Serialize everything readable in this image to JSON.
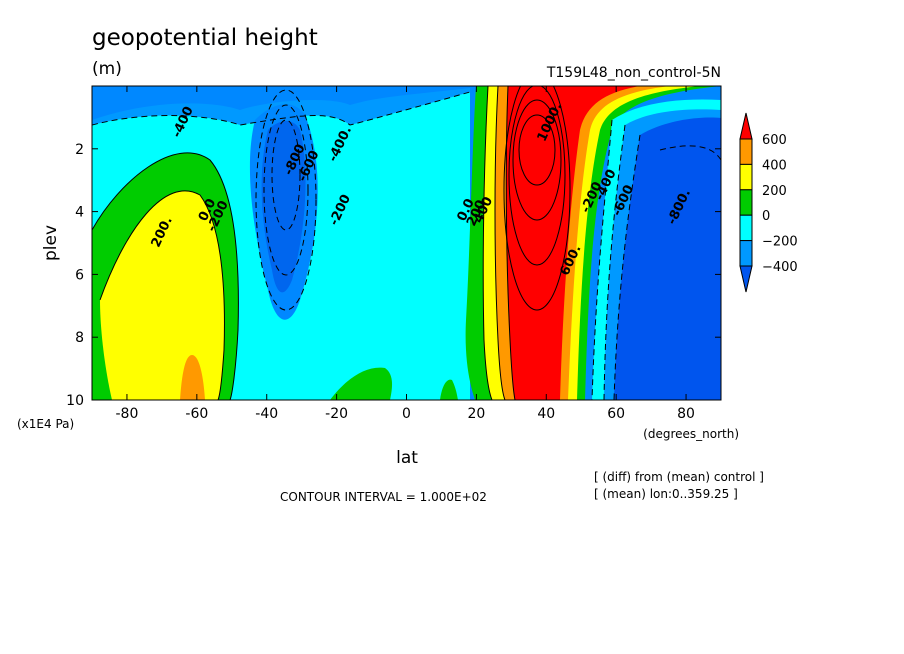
{
  "chart_data": {
    "type": "contour",
    "title": "geopotential height",
    "units": "(m)",
    "run_label": "T159L48_non_control-5N",
    "xlabel": "lat",
    "xunits": "(degrees_north)",
    "ylabel": "plev",
    "yunits": "(x1E4 Pa)",
    "xlim": [
      -90,
      90
    ],
    "ylim": [
      10,
      0
    ],
    "x_ticks": [
      -80,
      -60,
      -40,
      -20,
      0,
      20,
      40,
      60,
      80
    ],
    "y_ticks": [
      2,
      4,
      6,
      8,
      10
    ],
    "x_tick_labels": [
      "-80",
      "-60",
      "-40",
      "-20",
      "0",
      "20",
      "40",
      "60",
      "80"
    ],
    "y_tick_labels": [
      "2",
      "4",
      "6",
      "8",
      "10"
    ],
    "contour_interval_text": "CONTOUR INTERVAL = 1.000E+02",
    "notes": [
      "[ (diff) from (mean) control ]",
      "[ (mean) lon:0..359.25 ]"
    ],
    "colorbar": {
      "levels": [
        600,
        400,
        200,
        0,
        -200,
        -400
      ],
      "labels": [
        "600",
        "400",
        "200",
        "0",
        "−200",
        "−400"
      ],
      "colors": [
        "#ff0000",
        "#ff9900",
        "#ffff00",
        "#00cc00",
        "#00ffff",
        "#0099ff",
        "#0055ee"
      ]
    },
    "contour_labels": [
      {
        "text": "-400",
        "lat": -63,
        "plev": 1.2
      },
      {
        "text": "-400.",
        "lat": -18,
        "plev": 1.9
      },
      {
        "text": "-600",
        "lat": -27,
        "plev": 2.6
      },
      {
        "text": "-800",
        "lat": -31,
        "plev": 2.4
      },
      {
        "text": "-200",
        "lat": -18,
        "plev": 4.0
      },
      {
        "text": "-200",
        "lat": -53,
        "plev": 4.2
      },
      {
        "text": "0.0",
        "lat": -56,
        "plev": 4.0
      },
      {
        "text": "200.",
        "lat": -69,
        "plev": 4.7
      },
      {
        "text": "0.0",
        "lat": 18,
        "plev": 4.0
      },
      {
        "text": "200",
        "lat": 21,
        "plev": 4.1
      },
      {
        "text": "400",
        "lat": 23,
        "plev": 4.0
      },
      {
        "text": "600.",
        "lat": 48,
        "plev": 5.6
      },
      {
        "text": "1000.",
        "lat": 42,
        "plev": 1.2
      },
      {
        "text": "-200",
        "lat": 54,
        "plev": 3.6
      },
      {
        "text": "-400",
        "lat": 58,
        "plev": 3.2
      },
      {
        "text": "-600",
        "lat": 63,
        "plev": 3.7
      },
      {
        "text": "-800.",
        "lat": 79,
        "plev": 3.9
      }
    ]
  }
}
